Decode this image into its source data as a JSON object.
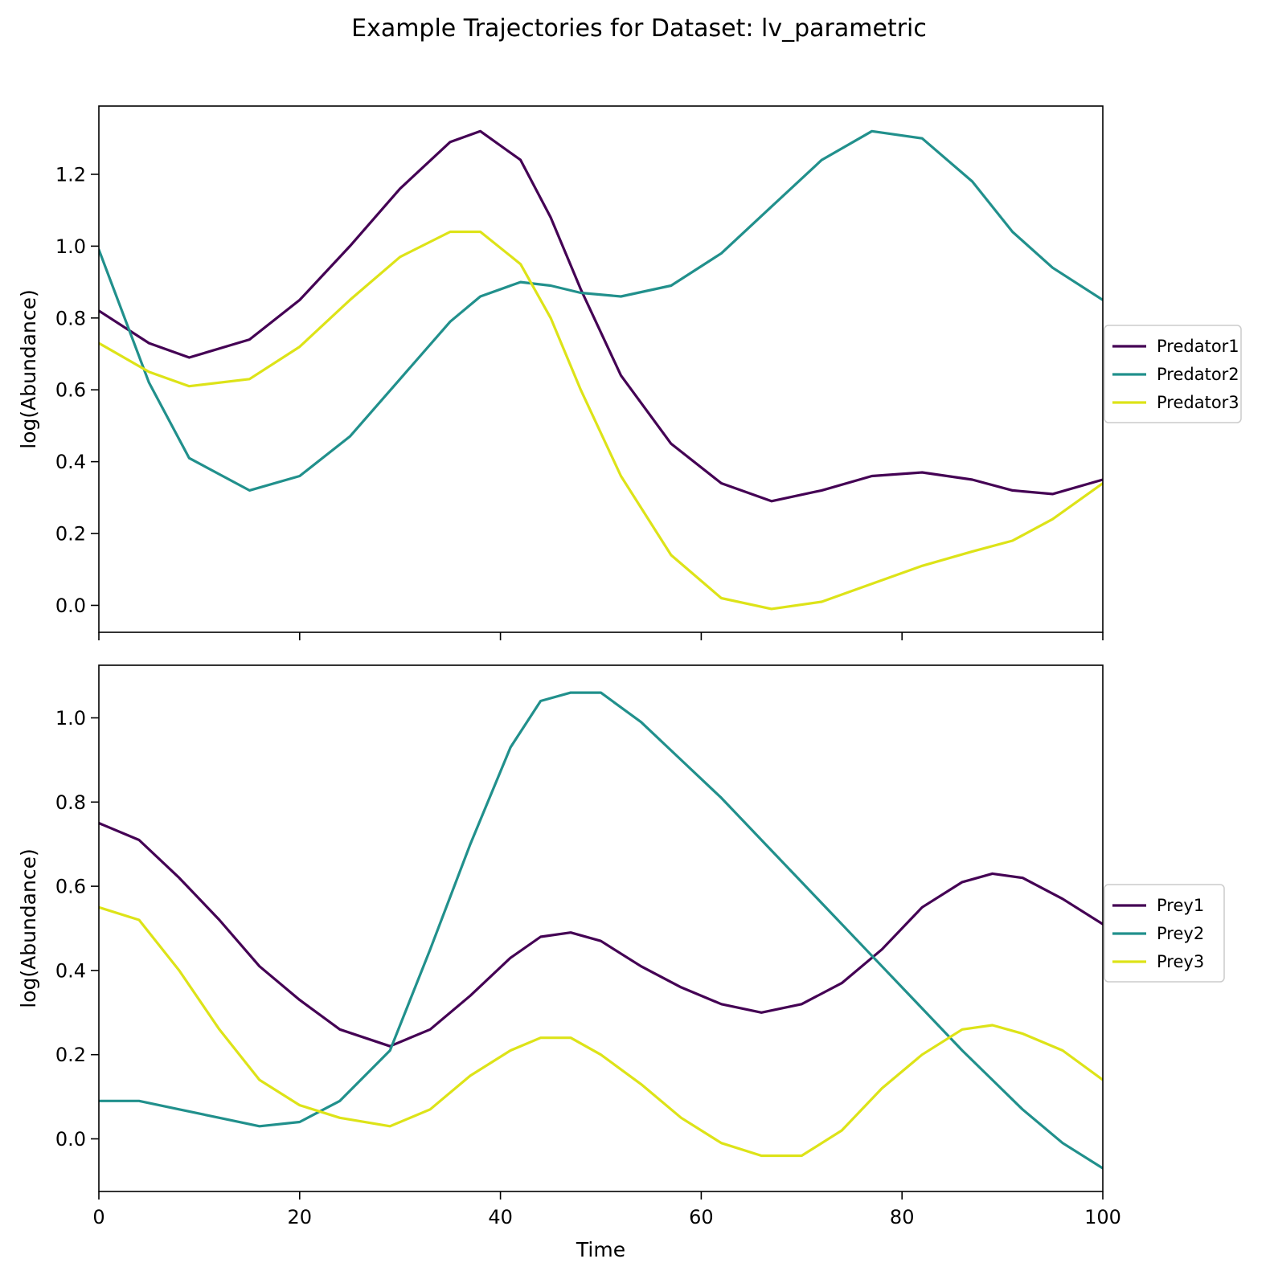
{
  "title": "Example Trajectories for Dataset: lv_parametric",
  "colors": {
    "series1": "#440154",
    "series2": "#21908c",
    "series3": "#dde318"
  },
  "chart_data": [
    {
      "type": "line",
      "xlabel": "",
      "ylabel": "log(Abundance)",
      "xlim": [
        0,
        100
      ],
      "ylim": [
        -0.075,
        1.39
      ],
      "xticks": [
        0,
        20,
        40,
        60,
        80,
        100
      ],
      "yticks": [
        0.0,
        0.2,
        0.4,
        0.6,
        0.8,
        1.0,
        1.2
      ],
      "show_x_tick_labels": false,
      "grid": false,
      "legend_position": "right",
      "x": [
        0,
        5,
        9,
        15,
        20,
        25,
        30,
        35,
        38,
        42,
        45,
        48,
        52,
        57,
        62,
        67,
        72,
        77,
        82,
        87,
        91,
        95,
        100
      ],
      "series": [
        {
          "name": "Predator1",
          "values": [
            0.82,
            0.73,
            0.69,
            0.74,
            0.85,
            1.0,
            1.16,
            1.29,
            1.32,
            1.24,
            1.08,
            0.88,
            0.64,
            0.45,
            0.34,
            0.29,
            0.32,
            0.36,
            0.37,
            0.35,
            0.32,
            0.31,
            0.35
          ]
        },
        {
          "name": "Predator2",
          "values": [
            0.99,
            0.62,
            0.41,
            0.32,
            0.36,
            0.47,
            0.63,
            0.79,
            0.86,
            0.9,
            0.89,
            0.87,
            0.86,
            0.89,
            0.98,
            1.11,
            1.24,
            1.32,
            1.3,
            1.18,
            1.04,
            0.94,
            0.85
          ]
        },
        {
          "name": "Predator3",
          "values": [
            0.73,
            0.65,
            0.61,
            0.63,
            0.72,
            0.85,
            0.97,
            1.04,
            1.04,
            0.95,
            0.8,
            0.6,
            0.36,
            0.14,
            0.02,
            -0.01,
            0.01,
            0.06,
            0.11,
            0.15,
            0.18,
            0.24,
            0.34
          ]
        }
      ]
    },
    {
      "type": "line",
      "xlabel": "Time",
      "ylabel": "log(Abundance)",
      "xlim": [
        0,
        100
      ],
      "ylim": [
        -0.125,
        1.125
      ],
      "xticks": [
        0,
        20,
        40,
        60,
        80,
        100
      ],
      "yticks": [
        0.0,
        0.2,
        0.4,
        0.6,
        0.8,
        1.0
      ],
      "show_x_tick_labels": true,
      "grid": false,
      "legend_position": "right",
      "x": [
        0,
        4,
        8,
        12,
        16,
        20,
        24,
        29,
        33,
        37,
        41,
        44,
        47,
        50,
        54,
        58,
        62,
        66,
        70,
        74,
        78,
        82,
        86,
        89,
        92,
        96,
        100
      ],
      "series": [
        {
          "name": "Prey1",
          "values": [
            0.75,
            0.71,
            0.62,
            0.52,
            0.41,
            0.33,
            0.26,
            0.22,
            0.26,
            0.34,
            0.43,
            0.48,
            0.49,
            0.47,
            0.41,
            0.36,
            0.32,
            0.3,
            0.32,
            0.37,
            0.45,
            0.55,
            0.61,
            0.63,
            0.62,
            0.57,
            0.51
          ]
        },
        {
          "name": "Prey2",
          "values": [
            0.09,
            0.09,
            0.07,
            0.05,
            0.03,
            0.04,
            0.09,
            0.21,
            0.45,
            0.7,
            0.93,
            1.04,
            1.06,
            1.06,
            0.99,
            0.9,
            0.81,
            0.71,
            0.61,
            0.51,
            0.41,
            0.31,
            0.21,
            0.14,
            0.07,
            -0.01,
            -0.07
          ]
        },
        {
          "name": "Prey3",
          "values": [
            0.55,
            0.52,
            0.4,
            0.26,
            0.14,
            0.08,
            0.05,
            0.03,
            0.07,
            0.15,
            0.21,
            0.24,
            0.24,
            0.2,
            0.13,
            0.05,
            -0.01,
            -0.04,
            -0.04,
            0.02,
            0.12,
            0.2,
            0.26,
            0.27,
            0.25,
            0.21,
            0.14
          ]
        }
      ]
    }
  ]
}
